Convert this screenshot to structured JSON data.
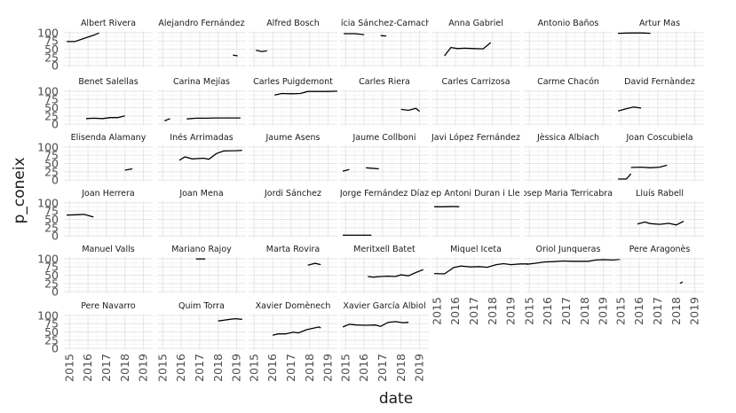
{
  "chart_data": {
    "type": "line",
    "xlabel": "date",
    "ylabel": "p_coneix",
    "x_ticks": [
      "2015",
      "2016",
      "2017",
      "2018",
      "2019"
    ],
    "y_ticks": [
      0,
      25,
      50,
      75,
      100
    ],
    "xlim": [
      2014.7,
      2019.5
    ],
    "ylim": [
      -5,
      105
    ],
    "grid": true,
    "line_color": "#000000",
    "facets": [
      {
        "label": "Albert Rivera",
        "segments": [
          [
            [
              2014.85,
              73
            ],
            [
              2015.3,
              73
            ],
            [
              2015.9,
              85
            ],
            [
              2016.3,
              92
            ],
            [
              2016.6,
              99
            ]
          ]
        ]
      },
      {
        "label": "Alejandro Fernández",
        "segments": [
          [
            [
              2018.8,
              32
            ],
            [
              2019.05,
              30
            ]
          ]
        ]
      },
      {
        "label": "Alfred Bosch",
        "segments": [
          [
            [
              2015.1,
              47
            ],
            [
              2015.4,
              43
            ],
            [
              2015.7,
              45
            ]
          ]
        ]
      },
      {
        "label": "Alícia Sánchez-Camacho",
        "segments": [
          [
            [
              2014.9,
              97
            ],
            [
              2015.5,
              97
            ],
            [
              2016.0,
              94
            ]
          ],
          [
            [
              2016.9,
              91
            ],
            [
              2017.2,
              90
            ]
          ]
        ]
      },
      {
        "label": "Anna Gabriel",
        "segments": [
          [
            [
              2015.4,
              30
            ],
            [
              2015.75,
              55
            ],
            [
              2016.1,
              52
            ],
            [
              2016.5,
              53
            ],
            [
              2017.0,
              52
            ],
            [
              2017.5,
              51
            ],
            [
              2017.9,
              70
            ]
          ]
        ]
      },
      {
        "label": "Antonio Baños",
        "segments": []
      },
      {
        "label": "Artur Mas",
        "segments": [
          [
            [
              2014.85,
              98
            ],
            [
              2015.5,
              99
            ],
            [
              2016.2,
              99
            ],
            [
              2016.6,
              98
            ]
          ]
        ]
      },
      {
        "label": "Benet Salellas",
        "segments": [
          [
            [
              2015.9,
              17
            ],
            [
              2016.3,
              18
            ],
            [
              2016.8,
              17
            ],
            [
              2017.2,
              20
            ],
            [
              2017.6,
              20
            ],
            [
              2018.0,
              25
            ]
          ]
        ]
      },
      {
        "label": "Carina Mejías",
        "segments": [
          [
            [
              2015.1,
              10
            ],
            [
              2015.4,
              17
            ]
          ],
          [
            [
              2016.3,
              16
            ],
            [
              2016.8,
              18
            ],
            [
              2017.3,
              18
            ],
            [
              2017.8,
              19
            ],
            [
              2018.5,
              19
            ],
            [
              2019.2,
              19
            ]
          ]
        ]
      },
      {
        "label": "Carles Puigdemont",
        "segments": [
          [
            [
              2016.1,
              88
            ],
            [
              2016.5,
              93
            ],
            [
              2017.0,
              92
            ],
            [
              2017.5,
              93
            ],
            [
              2017.9,
              99
            ],
            [
              2018.5,
              99
            ],
            [
              2019.0,
              99
            ],
            [
              2019.5,
              100
            ]
          ]
        ]
      },
      {
        "label": "Carles Riera",
        "segments": [
          [
            [
              2018.0,
              45
            ],
            [
              2018.4,
              42
            ],
            [
              2018.8,
              48
            ],
            [
              2019.0,
              39
            ]
          ]
        ]
      },
      {
        "label": "Carles Carrizosa",
        "segments": []
      },
      {
        "label": "Carme Chacón",
        "segments": []
      },
      {
        "label": "David Fernàndez",
        "segments": [
          [
            [
              2014.85,
              40
            ],
            [
              2015.3,
              47
            ],
            [
              2015.7,
              52
            ],
            [
              2016.1,
              49
            ]
          ]
        ]
      },
      {
        "label": "Elisenda Alamany",
        "segments": [
          [
            [
              2018.0,
              30
            ],
            [
              2018.4,
              34
            ]
          ]
        ]
      },
      {
        "label": "Inés Arrimadas",
        "segments": [
          [
            [
              2015.9,
              60
            ],
            [
              2016.2,
              70
            ],
            [
              2016.6,
              64
            ],
            [
              2017.2,
              66
            ],
            [
              2017.5,
              63
            ],
            [
              2017.9,
              80
            ],
            [
              2018.3,
              88
            ],
            [
              2019.0,
              89
            ],
            [
              2019.3,
              90
            ]
          ]
        ]
      },
      {
        "label": "Jaume Asens",
        "segments": []
      },
      {
        "label": "Jaume Collboni",
        "segments": [
          [
            [
              2014.85,
              27
            ],
            [
              2015.2,
              32
            ]
          ],
          [
            [
              2016.1,
              37
            ],
            [
              2016.8,
              34
            ]
          ]
        ]
      },
      {
        "label": "Javi López Fernández",
        "segments": []
      },
      {
        "label": "Jèssica Albiach",
        "segments": []
      },
      {
        "label": "Joan Coscubiela",
        "segments": [
          [
            [
              2014.85,
              3
            ],
            [
              2015.3,
              3
            ],
            [
              2015.55,
              19
            ]
          ],
          [
            [
              2015.55,
              38
            ],
            [
              2016.1,
              39
            ],
            [
              2016.6,
              37
            ],
            [
              2017.1,
              39
            ],
            [
              2017.5,
              45
            ]
          ]
        ]
      },
      {
        "label": "Joan Herrera",
        "segments": [
          [
            [
              2014.85,
              63
            ],
            [
              2015.4,
              64
            ],
            [
              2015.8,
              65
            ],
            [
              2016.3,
              57
            ]
          ]
        ]
      },
      {
        "label": "Joan Mena",
        "segments": []
      },
      {
        "label": "Jordi Sánchez",
        "segments": []
      },
      {
        "label": "Jorge Fernández Díaz",
        "segments": [
          [
            [
              2014.85,
              2
            ],
            [
              2015.5,
              2
            ],
            [
              2016.4,
              2
            ]
          ]
        ]
      },
      {
        "label": "Josep Antoni Duran i Lleida",
        "segments": [
          [
            [
              2014.85,
              88
            ],
            [
              2015.4,
              88
            ],
            [
              2015.9,
              89
            ],
            [
              2016.2,
              88
            ]
          ]
        ]
      },
      {
        "label": "Josep Maria Terricabras",
        "segments": []
      },
      {
        "label": "Lluís Rabell",
        "segments": [
          [
            [
              2015.9,
              36
            ],
            [
              2016.3,
              42
            ],
            [
              2016.6,
              37
            ],
            [
              2017.1,
              35
            ],
            [
              2017.6,
              38
            ],
            [
              2018.0,
              33
            ],
            [
              2018.4,
              44
            ]
          ]
        ]
      },
      {
        "label": "Manuel Valls",
        "segments": []
      },
      {
        "label": "Mariano Rajoy",
        "segments": [
          [
            [
              2016.8,
              99
            ],
            [
              2017.3,
              99
            ]
          ]
        ]
      },
      {
        "label": "Marta Rovira",
        "segments": [
          [
            [
              2017.9,
              80
            ],
            [
              2018.3,
              86
            ],
            [
              2018.6,
              82
            ]
          ]
        ]
      },
      {
        "label": "Meritxell Batet",
        "segments": [
          [
            [
              2016.2,
              46
            ],
            [
              2016.5,
              44
            ],
            [
              2016.9,
              46
            ],
            [
              2017.3,
              47
            ],
            [
              2017.7,
              46
            ],
            [
              2018.0,
              51
            ],
            [
              2018.4,
              48
            ],
            [
              2018.8,
              58
            ],
            [
              2019.2,
              67
            ]
          ]
        ]
      },
      {
        "label": "Miquel Iceta",
        "segments": [
          [
            [
              2014.85,
              55
            ],
            [
              2015.4,
              54
            ],
            [
              2015.9,
              73
            ],
            [
              2016.3,
              78
            ],
            [
              2016.8,
              75
            ],
            [
              2017.3,
              76
            ],
            [
              2017.7,
              74
            ],
            [
              2018.2,
              82
            ],
            [
              2018.6,
              85
            ],
            [
              2019.0,
              82
            ],
            [
              2019.5,
              84
            ],
            [
              2019.9,
              84
            ]
          ]
        ]
      },
      {
        "label": "Oriol Junqueras",
        "segments": [
          [
            [
              2014.85,
              83
            ],
            [
              2015.3,
              86
            ],
            [
              2015.8,
              90
            ],
            [
              2016.3,
              91
            ],
            [
              2016.8,
              93
            ],
            [
              2017.3,
              92
            ],
            [
              2017.8,
              92
            ],
            [
              2018.2,
              92
            ],
            [
              2018.6,
              96
            ],
            [
              2019.0,
              97
            ],
            [
              2019.5,
              96
            ],
            [
              2019.9,
              98
            ]
          ]
        ]
      },
      {
        "label": "Pere Aragonès",
        "segments": [
          [
            [
              2018.2,
              25
            ],
            [
              2018.35,
              30
            ]
          ]
        ]
      },
      {
        "label": "Pere Navarro",
        "segments": []
      },
      {
        "label": "Quim Torra",
        "segments": [
          [
            [
              2018.0,
              83
            ],
            [
              2018.5,
              87
            ],
            [
              2018.9,
              90
            ],
            [
              2019.3,
              88
            ]
          ]
        ]
      },
      {
        "label": "Xavier Domènech",
        "segments": [
          [
            [
              2016.0,
              40
            ],
            [
              2016.3,
              44
            ],
            [
              2016.7,
              44
            ],
            [
              2017.1,
              49
            ],
            [
              2017.4,
              47
            ],
            [
              2017.8,
              56
            ],
            [
              2018.1,
              60
            ],
            [
              2018.5,
              65
            ],
            [
              2018.6,
              62
            ]
          ]
        ]
      },
      {
        "label": "Xavier García Albiol",
        "segments": [
          [
            [
              2014.85,
              65
            ],
            [
              2015.2,
              73
            ],
            [
              2015.6,
              71
            ],
            [
              2016.1,
              70
            ],
            [
              2016.6,
              71
            ],
            [
              2016.9,
              67
            ],
            [
              2017.3,
              79
            ],
            [
              2017.7,
              81
            ],
            [
              2018.1,
              78
            ],
            [
              2018.4,
              79
            ]
          ]
        ]
      }
    ]
  }
}
